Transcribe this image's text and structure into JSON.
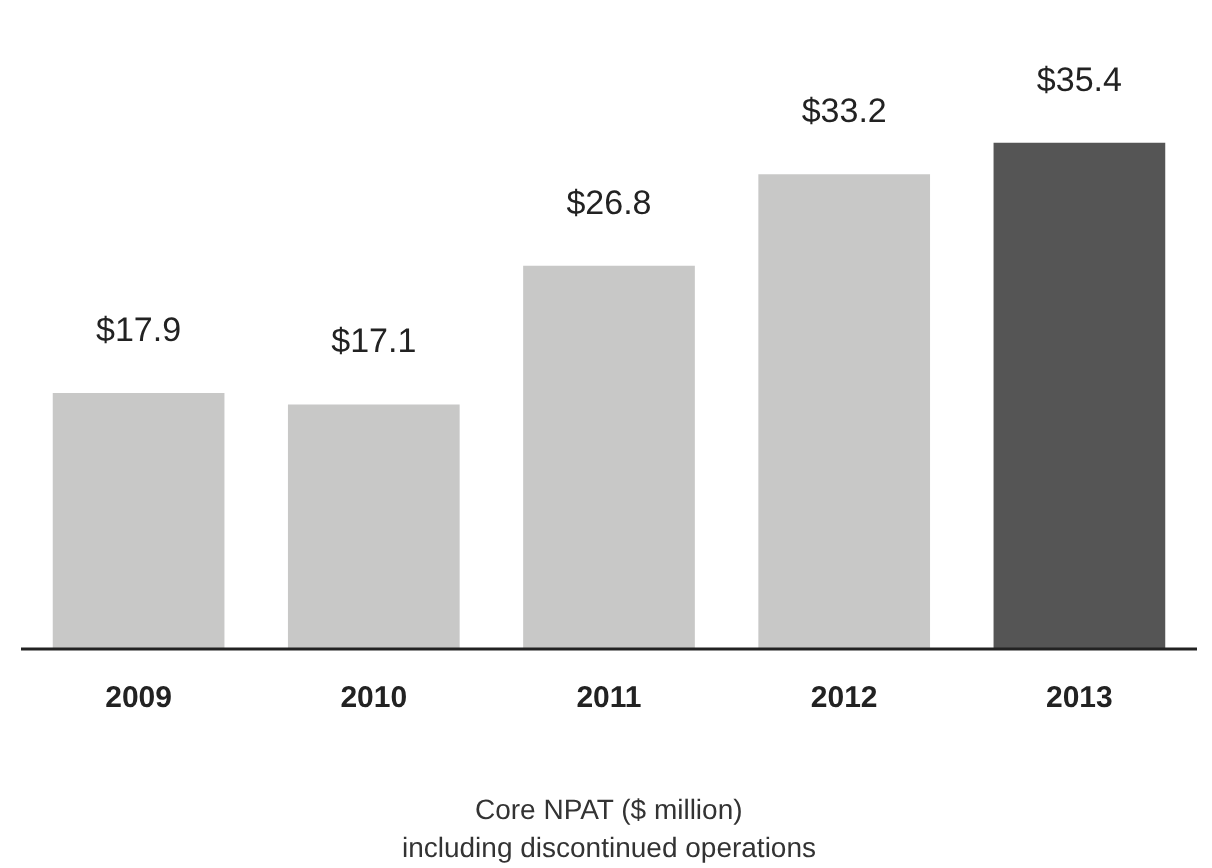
{
  "chart_data": {
    "type": "bar",
    "categories": [
      "2009",
      "2010",
      "2011",
      "2012",
      "2013"
    ],
    "values": [
      17.9,
      17.1,
      26.8,
      33.2,
      35.4
    ],
    "value_labels": [
      "$17.9",
      "$17.1",
      "$26.8",
      "$33.2",
      "$35.4"
    ],
    "colors": [
      "#c8c8c7",
      "#c8c8c7",
      "#c8c8c7",
      "#c8c8c7",
      "#555555"
    ],
    "xlabel": "Core NPAT ($ million)\nincluding discontinued operations",
    "grid": false
  }
}
